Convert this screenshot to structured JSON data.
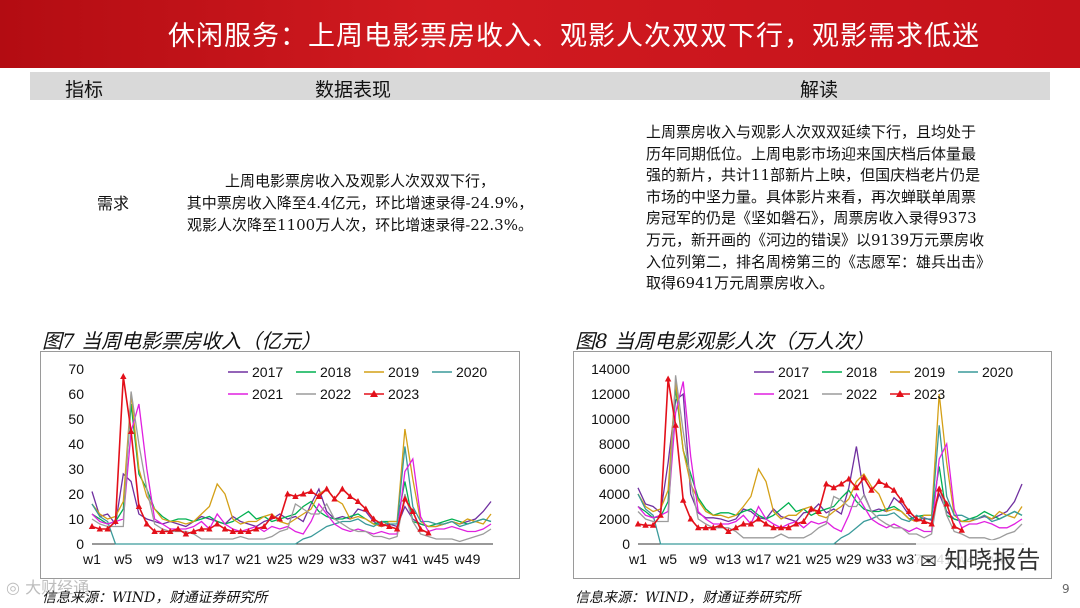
{
  "header": {
    "title": "休闲服务：上周电影票房收入、观影人次双双下行，观影需求低迷"
  },
  "table": {
    "columns": [
      "指标",
      "数据表现",
      "解读"
    ],
    "row": {
      "indicator": "需求",
      "performance_lines": [
        "上周电影票房收入及观影人次双双下行，",
        "其中票房收入降至4.4亿元，环比增速录得-24.9%，",
        "观影人次降至1100万人次，环比增速录得-22.3%。"
      ],
      "interpretation_lines": [
        "上周票房收入与观影人次双双延续下行，且均处于",
        "历年同期低位。上周电影市场迎来国庆档后体量最",
        "强的新片，共计11部新片上映，但国庆档老片仍是",
        "市场的中坚力量。具体影片来看，再次蝉联单周票",
        "房冠军的仍是《坚如磐石》，周票房收入录得9373",
        "万元，新开画的《河边的错误》以9139万元票房收",
        "入位列第二，排名周榜第三的《志愿军：雄兵出击》",
        "取得6941万元周票房收入。"
      ]
    }
  },
  "chart_data": [
    {
      "type": "line",
      "title": "图7 当周电影票房收入（亿元）",
      "ylim": [
        0,
        70
      ],
      "yticks": [
        "0",
        "10",
        "20",
        "30",
        "40",
        "50",
        "60",
        "70"
      ],
      "xticks": [
        "w1",
        "w5",
        "w9",
        "w13",
        "w17",
        "w21",
        "w25",
        "w29",
        "w33",
        "w37",
        "w41",
        "w45",
        "w49"
      ],
      "legend_position": "top-right",
      "series": [
        {
          "name": "2017",
          "color": "#7030a0",
          "values": [
            21,
            11,
            12,
            8,
            28,
            25,
            12,
            10,
            9,
            8,
            9,
            8,
            7,
            9,
            11,
            10,
            9,
            8,
            11,
            9,
            8,
            7,
            9,
            10,
            12,
            10,
            11,
            9,
            16,
            22,
            13,
            10,
            11,
            10,
            14,
            13,
            9,
            7,
            8,
            7,
            15,
            10,
            8,
            7,
            7,
            8,
            9,
            8,
            9,
            10,
            13,
            17
          ]
        },
        {
          "name": "2018",
          "color": "#00b050",
          "values": [
            12,
            10,
            8,
            9,
            14,
            56,
            28,
            22,
            14,
            11,
            9,
            10,
            10,
            9,
            10,
            11,
            9,
            8,
            9,
            11,
            13,
            10,
            11,
            9,
            10,
            11,
            12,
            15,
            17,
            13,
            11,
            10,
            10,
            11,
            12,
            10,
            8,
            9,
            9,
            9,
            25,
            9,
            8,
            7,
            8,
            9,
            10,
            9,
            8,
            9,
            10,
            9
          ]
        },
        {
          "name": "2019",
          "color": "#d4a017",
          "values": [
            16,
            12,
            10,
            11,
            17,
            60,
            30,
            19,
            14,
            10,
            9,
            9,
            8,
            9,
            12,
            15,
            24,
            20,
            10,
            8,
            9,
            9,
            11,
            12,
            9,
            8,
            10,
            12,
            14,
            20,
            22,
            18,
            16,
            10,
            11,
            10,
            8,
            7,
            9,
            9,
            46,
            26,
            9,
            7,
            7,
            8,
            9,
            8,
            10,
            9,
            8,
            12
          ]
        },
        {
          "name": "2020",
          "color": "#3a9a9a",
          "values": [
            16,
            11,
            9,
            0,
            0,
            0,
            0,
            0,
            0,
            0,
            0,
            0,
            0,
            0,
            0,
            0,
            0,
            0,
            0,
            0,
            0,
            0,
            0,
            0,
            0,
            0,
            0,
            2,
            3,
            5,
            7,
            8,
            9,
            9,
            10,
            8,
            7,
            9,
            8,
            8,
            39,
            15,
            9,
            9,
            8,
            8,
            9,
            7,
            8,
            9,
            10,
            9
          ]
        },
        {
          "name": "2021",
          "color": "#e020e0",
          "values": [
            12,
            9,
            8,
            9,
            10,
            45,
            56,
            30,
            10,
            8,
            6,
            6,
            6,
            7,
            9,
            6,
            12,
            8,
            6,
            5,
            6,
            7,
            5,
            7,
            6,
            7,
            5,
            4,
            9,
            16,
            12,
            8,
            6,
            5,
            6,
            5,
            4,
            5,
            4,
            4,
            29,
            34,
            11,
            5,
            6,
            6,
            7,
            6,
            5,
            5,
            6,
            8
          ]
        },
        {
          "name": "2022",
          "color": "#9c9c9c",
          "values": [
            10,
            8,
            7,
            7,
            7,
            61,
            40,
            22,
            8,
            6,
            5,
            5,
            5,
            4,
            2,
            2,
            2,
            2,
            2,
            3,
            2,
            2,
            2,
            3,
            5,
            6,
            16,
            14,
            12,
            12,
            16,
            10,
            8,
            6,
            5,
            5,
            3,
            3,
            2,
            3,
            20,
            9,
            4,
            3,
            2,
            2,
            2,
            1,
            2,
            3,
            4,
            6
          ]
        },
        {
          "name": "2023",
          "color": "#e3101a",
          "marker": "triangle",
          "values": [
            7,
            6,
            6,
            9,
            67,
            45,
            15,
            8,
            5,
            5,
            5,
            6,
            4,
            5,
            6,
            6,
            8,
            6,
            5,
            5,
            5,
            6,
            7,
            11,
            10,
            20,
            19,
            20,
            21,
            19,
            22,
            18,
            22,
            19,
            17,
            14,
            10,
            8,
            7,
            6,
            18,
            13,
            5.9,
            4.4
          ]
        }
      ]
    },
    {
      "type": "line",
      "title": "图8 当周电影观影人次（万人次）",
      "ylim": [
        0,
        14000
      ],
      "yticks": [
        "0",
        "2000",
        "4000",
        "6000",
        "8000",
        "10000",
        "12000",
        "14000"
      ],
      "xticks": [
        "w1",
        "w5",
        "w9",
        "w13",
        "w17",
        "w21",
        "w25",
        "w29",
        "w33",
        "w37",
        "w41",
        "w45",
        "w49"
      ],
      "legend_position": "top-right",
      "series": [
        {
          "name": "2017",
          "color": "#7030a0",
          "values": [
            4500,
            3200,
            3000,
            2500,
            6500,
            11500,
            12000,
            4000,
            2500,
            2100,
            2100,
            2000,
            1800,
            2000,
            2800,
            2600,
            2100,
            2000,
            2800,
            2200,
            2000,
            1800,
            2500,
            2600,
            3200,
            2500,
            2800,
            2400,
            4500,
            7800,
            4000,
            2600,
            2800,
            2600,
            3700,
            3200,
            2300,
            1800,
            2100,
            1900,
            4000,
            2600,
            2000,
            1800,
            1800,
            2000,
            2200,
            2000,
            2300,
            2600,
            3400,
            4800
          ]
        },
        {
          "name": "2018",
          "color": "#00b050",
          "values": [
            3000,
            2600,
            2100,
            2200,
            3400,
            12500,
            7500,
            5600,
            3700,
            2800,
            2300,
            2500,
            2500,
            2300,
            2600,
            2800,
            2300,
            2000,
            2300,
            2800,
            3300,
            2600,
            2800,
            2300,
            2600,
            2800,
            3000,
            3700,
            4300,
            3400,
            2800,
            2600,
            2600,
            2800,
            3000,
            2600,
            2000,
            2200,
            2300,
            2300,
            6200,
            2300,
            2000,
            1800,
            2000,
            2200,
            2600,
            2300,
            2000,
            2300,
            2600,
            2300
          ]
        },
        {
          "name": "2019",
          "color": "#d4a017",
          "values": [
            4000,
            3000,
            2600,
            2800,
            4300,
            13000,
            7500,
            4800,
            3500,
            2600,
            2300,
            2300,
            2100,
            2300,
            3000,
            3800,
            6000,
            5000,
            2600,
            2000,
            2300,
            2300,
            2800,
            3000,
            2300,
            2100,
            2600,
            3000,
            3600,
            5000,
            5600,
            4600,
            4000,
            2600,
            2800,
            2600,
            2000,
            1800,
            2300,
            2300,
            12000,
            6500,
            2300,
            1800,
            1800,
            2000,
            2300,
            2000,
            2600,
            2300,
            2100,
            3000
          ]
        },
        {
          "name": "2020",
          "color": "#3a9a9a",
          "values": [
            4000,
            2800,
            2300,
            0,
            0,
            0,
            0,
            0,
            0,
            0,
            0,
            0,
            0,
            0,
            0,
            0,
            0,
            0,
            0,
            0,
            0,
            0,
            0,
            0,
            0,
            0,
            0,
            500,
            800,
            1300,
            1800,
            2000,
            2300,
            2300,
            2500,
            2000,
            1800,
            2300,
            2000,
            2000,
            9500,
            3800,
            2300,
            2300,
            2000,
            2000,
            2300,
            1800,
            2000,
            2300,
            2600,
            2300
          ]
        },
        {
          "name": "2021",
          "color": "#e020e0",
          "values": [
            3000,
            2300,
            2100,
            2300,
            2600,
            10500,
            13000,
            7000,
            2600,
            2000,
            1600,
            1600,
            1600,
            1800,
            2300,
            1600,
            3000,
            2000,
            1600,
            1300,
            1600,
            1800,
            1300,
            1800,
            1600,
            1800,
            1300,
            1000,
            2300,
            4000,
            3000,
            2000,
            1600,
            1300,
            1600,
            1300,
            1000,
            1300,
            1000,
            1000,
            6800,
            8000,
            2800,
            1300,
            1600,
            1600,
            1800,
            1600,
            1300,
            1300,
            1600,
            2000
          ]
        },
        {
          "name": "2022",
          "color": "#9c9c9c",
          "values": [
            2600,
            2000,
            1800,
            1800,
            1800,
            13500,
            9000,
            5000,
            2000,
            1600,
            1300,
            1300,
            1300,
            1000,
            500,
            500,
            500,
            500,
            500,
            800,
            500,
            500,
            500,
            800,
            1300,
            1600,
            3800,
            3500,
            3000,
            3000,
            3900,
            2600,
            2000,
            1600,
            1300,
            1300,
            800,
            800,
            500,
            800,
            4600,
            2300,
            1000,
            800,
            500,
            500,
            500,
            300,
            500,
            800,
            1000,
            1600
          ]
        },
        {
          "name": "2023",
          "color": "#e3101a",
          "marker": "triangle",
          "values": [
            1600,
            1500,
            1500,
            2300,
            13200,
            9500,
            3500,
            2000,
            1300,
            1300,
            1300,
            1500,
            1000,
            1300,
            1600,
            1600,
            2000,
            1600,
            1300,
            1300,
            1300,
            1600,
            1800,
            2800,
            2600,
            4800,
            4500,
            4800,
            5200,
            4500,
            5300,
            4300,
            5000,
            4700,
            4300,
            3500,
            2600,
            2000,
            1800,
            1600,
            4400,
            3200,
            1420,
            1100
          ]
        }
      ]
    }
  ],
  "source": "信息来源：WIND，财通证券研究所",
  "page_number": "9",
  "watermark": {
    "left": "大财经通",
    "right": "知晓报告"
  }
}
